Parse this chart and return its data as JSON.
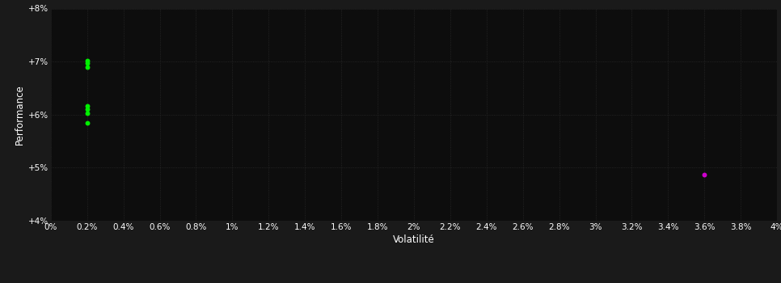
{
  "background_color": "#1a1a1a",
  "plot_bg_color": "#0d0d0d",
  "grid_color": "#2a2a2a",
  "text_color": "#ffffff",
  "xlabel": "Volatilité",
  "ylabel": "Performance",
  "x_min": 0.0,
  "x_max": 0.04,
  "y_min": 0.04,
  "y_max": 0.08,
  "x_ticks": [
    0.0,
    0.002,
    0.004,
    0.006,
    0.008,
    0.01,
    0.012,
    0.014,
    0.016,
    0.018,
    0.02,
    0.022,
    0.024,
    0.026,
    0.028,
    0.03,
    0.032,
    0.034,
    0.036,
    0.038,
    0.04
  ],
  "x_tick_labels": [
    "0%",
    "0.2%",
    "0.4%",
    "0.6%",
    "0.8%",
    "1%",
    "1.2%",
    "1.4%",
    "1.6%",
    "1.8%",
    "2%",
    "2.2%",
    "2.4%",
    "2.6%",
    "2.8%",
    "3%",
    "3.2%",
    "3.4%",
    "3.6%",
    "3.8%",
    "4%"
  ],
  "y_ticks": [
    0.04,
    0.05,
    0.06,
    0.07,
    0.08
  ],
  "y_tick_labels": [
    "+4%",
    "+5%",
    "+6%",
    "+7%",
    "+8%"
  ],
  "green_points": [
    [
      0.002,
      0.0702
    ],
    [
      0.002,
      0.0697
    ],
    [
      0.002,
      0.069
    ],
    [
      0.002,
      0.0617
    ],
    [
      0.002,
      0.061
    ],
    [
      0.002,
      0.0603
    ],
    [
      0.002,
      0.0585
    ]
  ],
  "magenta_points": [
    [
      0.036,
      0.0487
    ]
  ],
  "green_color": "#00ee00",
  "magenta_color": "#cc00cc",
  "marker_size": 18,
  "font_size_ticks": 7.5,
  "font_size_label": 8.5
}
